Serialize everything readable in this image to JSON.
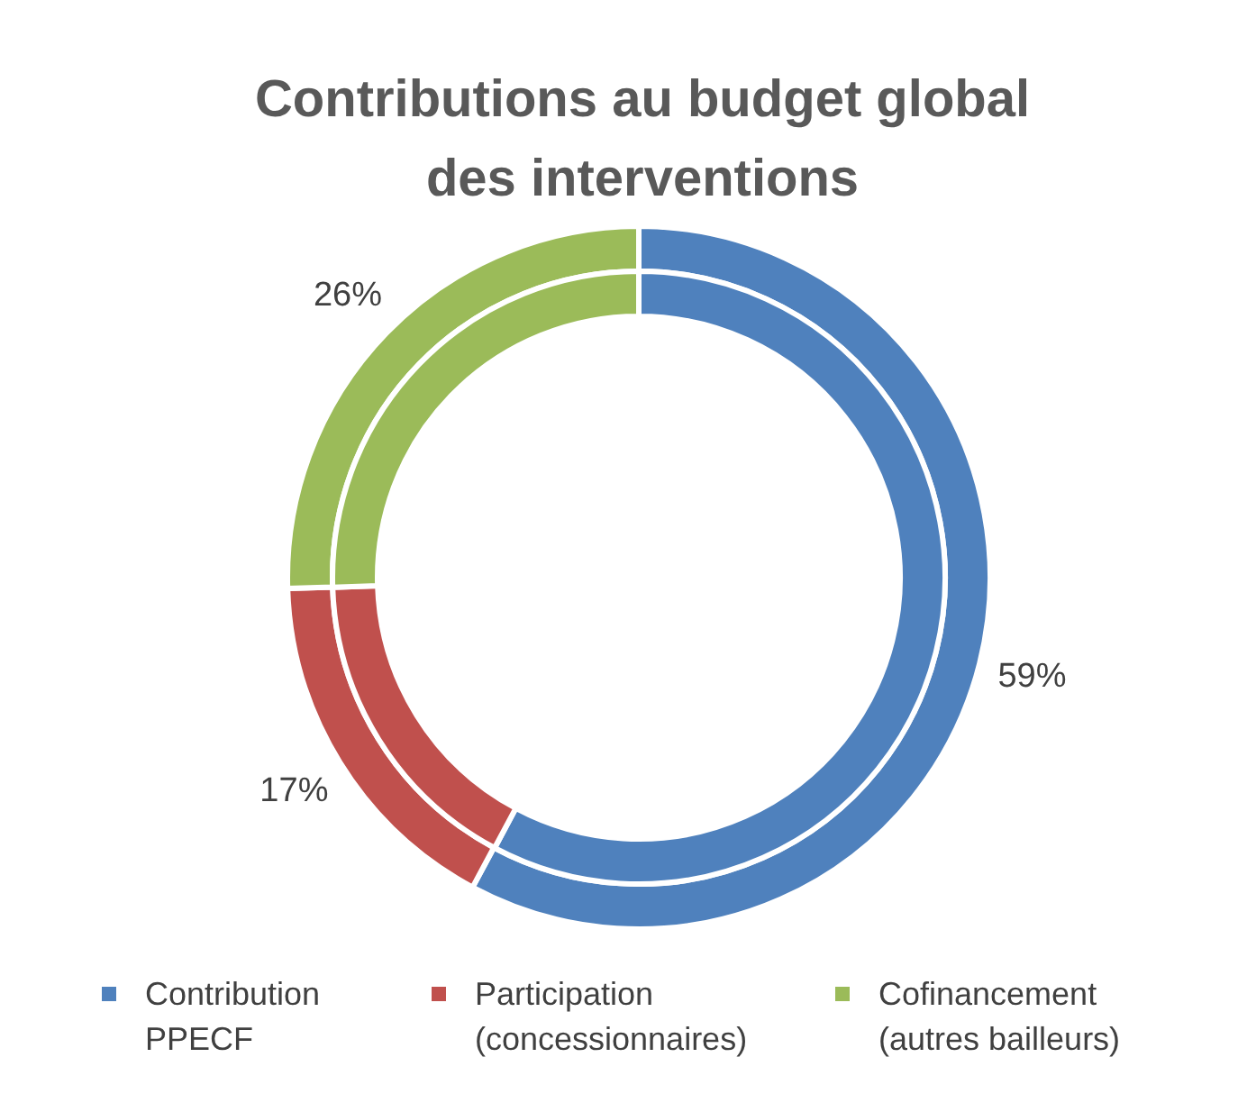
{
  "chart_data": {
    "type": "donut",
    "title": "Contributions au budget global des interventions",
    "categories": [
      "Contribution PPECF",
      "Participation (concessionnaires)",
      "Cofinancement (autres bailleurs)"
    ],
    "colors": [
      "#4f81bd",
      "#c0504d",
      "#9bbb59"
    ],
    "series": [
      {
        "values": [
          59,
          17,
          26
        ],
        "value_labels": [
          "59%",
          "17%",
          "26%"
        ]
      },
      {
        "values": [
          57.8,
          16.7,
          25.5
        ],
        "value_labels": [
          null,
          null,
          null
        ]
      }
    ],
    "legend": "bottom"
  }
}
